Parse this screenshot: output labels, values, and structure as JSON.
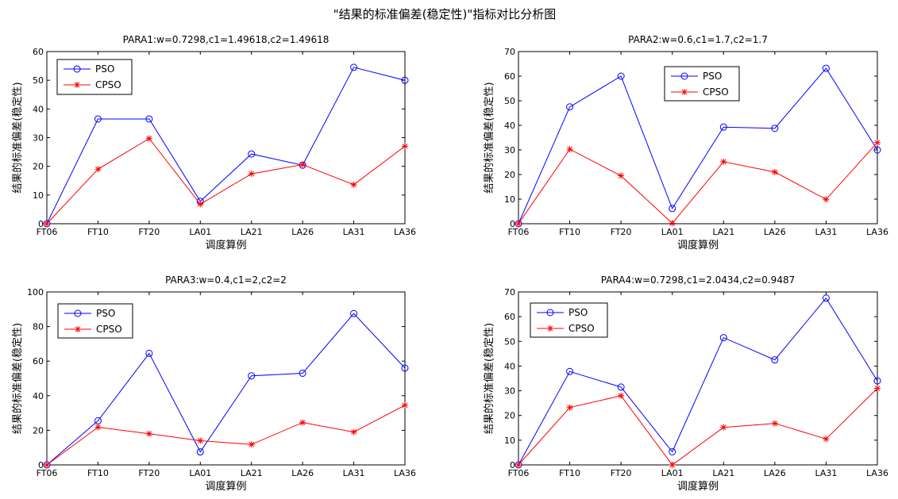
{
  "figure": {
    "title": "\"结果的标准偏差(稳定性)\"指标对比分析图"
  },
  "colors": {
    "pso": "#0000ff",
    "cpso": "#ff0000",
    "axis": "#000000"
  },
  "chart_data": [
    {
      "type": "line",
      "title": "PARA1:w=0.7298,c1=1.49618,c2=1.49618",
      "xlabel": "调度算例",
      "ylabel": "结果的标准偏差(稳定性)",
      "categories": [
        "FT06",
        "FT10",
        "FT20",
        "LA01",
        "LA21",
        "LA26",
        "LA31",
        "LA36"
      ],
      "ylim": [
        0,
        60
      ],
      "yticks": [
        0,
        10,
        20,
        30,
        40,
        50,
        60
      ],
      "legend": "top-left",
      "series": [
        {
          "name": "PSO",
          "marker": "circle",
          "values": [
            0,
            36.5,
            36.5,
            7.8,
            24.3,
            20.4,
            54.5,
            50.0
          ]
        },
        {
          "name": "CPSO",
          "marker": "star",
          "values": [
            0,
            19.0,
            29.7,
            6.8,
            17.4,
            20.6,
            13.6,
            27.0
          ]
        }
      ]
    },
    {
      "type": "line",
      "title": "PARA2:w=0.6,c1=1.7,c2=1.7",
      "xlabel": "调度算例",
      "ylabel": "结果的标准偏差(稳定性)",
      "categories": [
        "FT06",
        "FT10",
        "FT20",
        "LA01",
        "LA21",
        "LA26",
        "LA31",
        "LA36"
      ],
      "ylim": [
        0,
        70
      ],
      "yticks": [
        0,
        10,
        20,
        30,
        40,
        50,
        60,
        70
      ],
      "legend": "top-center",
      "series": [
        {
          "name": "PSO",
          "marker": "circle",
          "values": [
            0,
            47.5,
            60.0,
            6.2,
            39.3,
            38.8,
            63.2,
            30.0
          ]
        },
        {
          "name": "CPSO",
          "marker": "star",
          "values": [
            0,
            30.3,
            19.5,
            0.2,
            25.2,
            21.0,
            9.9,
            33.0
          ]
        }
      ]
    },
    {
      "type": "line",
      "title": "PARA3:w=0.4,c1=2,c2=2",
      "xlabel": "调度算例",
      "ylabel": "结果的标准偏差(稳定性)",
      "categories": [
        "FT06",
        "FT10",
        "FT20",
        "LA01",
        "LA21",
        "LA26",
        "LA31",
        "LA36"
      ],
      "ylim": [
        0,
        100
      ],
      "yticks": [
        0,
        20,
        40,
        60,
        80,
        100
      ],
      "legend": "top-left",
      "series": [
        {
          "name": "PSO",
          "marker": "circle",
          "values": [
            0,
            25.5,
            64.5,
            7.5,
            51.5,
            53.0,
            87.5,
            56.0
          ]
        },
        {
          "name": "CPSO",
          "marker": "star",
          "values": [
            0,
            21.8,
            18.0,
            14.0,
            11.8,
            24.5,
            19.0,
            34.5
          ]
        }
      ]
    },
    {
      "type": "line",
      "title": "PARA4:w=0.7298,c1=2.0434,c2=0.9487",
      "xlabel": "调度算例",
      "ylabel": "结果的标准偏差(稳定性)",
      "categories": [
        "FT06",
        "FT10",
        "FT20",
        "LA01",
        "LA21",
        "LA26",
        "LA31",
        "LA36"
      ],
      "ylim": [
        0,
        70
      ],
      "yticks": [
        0,
        10,
        20,
        30,
        40,
        50,
        60,
        70
      ],
      "legend": "top-left",
      "series": [
        {
          "name": "PSO",
          "marker": "circle",
          "values": [
            0,
            37.8,
            31.5,
            5.3,
            51.5,
            42.5,
            67.5,
            34.0
          ]
        },
        {
          "name": "CPSO",
          "marker": "star",
          "values": [
            0,
            23.2,
            28.0,
            0.0,
            15.2,
            16.8,
            10.5,
            31.0
          ]
        }
      ]
    }
  ]
}
